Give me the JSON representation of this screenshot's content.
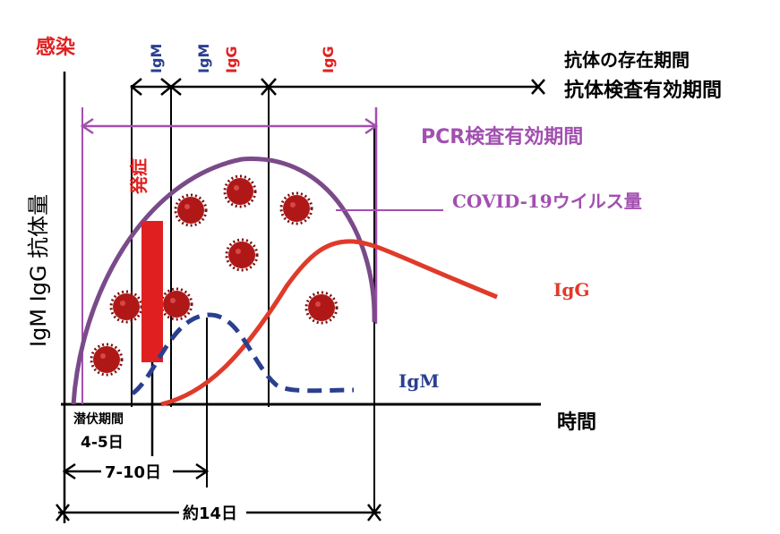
{
  "labels": {
    "infection": "感染",
    "igm_top": "IgM",
    "igm_top2": "IgM",
    "igg_top2": "IgG",
    "igg_top": "IgG",
    "antibody_presence": "抗体の存在期間",
    "antibody_test_period": "抗体検査有効期間",
    "pcr_period": "PCR検査有効期間",
    "virus_amount": "COVID-19ウイルス量",
    "y_axis": "IgM IgG 抗体量",
    "onset": "発症",
    "igg_curve": "IgG",
    "igm_curve": "IgM",
    "time_axis": "時間",
    "incubation": "潜伏期間",
    "days_4_5": "4-5日",
    "days_7_10": "7-10日",
    "days_14": "約14日"
  },
  "colors": {
    "black": "#000000",
    "red": "#e02020",
    "purple": "#7a4a8a",
    "purple_light": "#a24fb0",
    "blue": "#2a3f8f",
    "virus": "#b01818"
  }
}
